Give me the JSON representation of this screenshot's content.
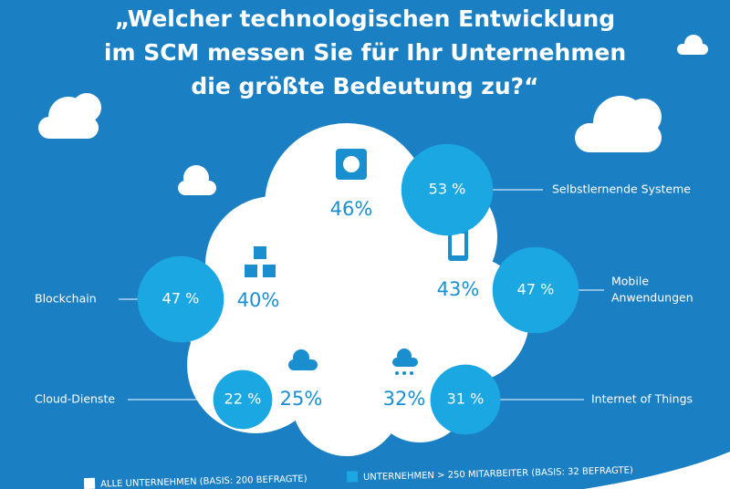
{
  "title_lines": [
    "„Welcher technologischen Entwicklung",
    "im SCM messen Sie für Ihr Unternehmen",
    "die größte Bedeutung zu?“"
  ],
  "items": [
    {
      "name_lines": [
        "Selbstlernende Systeme"
      ],
      "all": 46,
      "all_label": "46%",
      "large": 53,
      "large_label": "53 %"
    },
    {
      "name_lines": [
        "Mobile",
        "Anwendungen"
      ],
      "all": 43,
      "all_label": "43%",
      "large": 47,
      "large_label": "47 %"
    },
    {
      "name_lines": [
        "Blockchain"
      ],
      "all": 40,
      "all_label": "40%",
      "large": 47,
      "large_label": "47 %"
    },
    {
      "name_lines": [
        "Cloud-Dienste"
      ],
      "all": 25,
      "all_label": "25%",
      "large": 22,
      "large_label": "22 %"
    },
    {
      "name_lines": [
        "Internet of Things"
      ],
      "all": 32,
      "all_label": "32%",
      "large": 31,
      "large_label": "31 %"
    }
  ],
  "legend": [
    "ALLE UNTERNEHMEN (BASIS: 200 BEFRAGTE)",
    "UNTERNEHMEN > 250 MITARBEITER (BASIS: 32 BEFRAGTE)"
  ]
}
